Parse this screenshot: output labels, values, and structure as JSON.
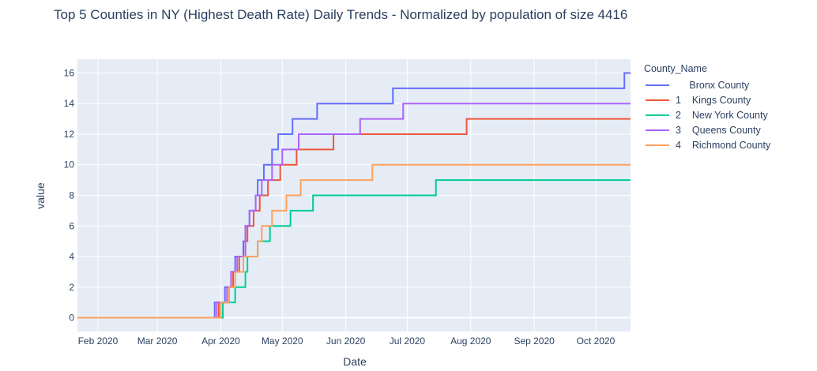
{
  "chart_data": {
    "type": "line",
    "line_shape": "step",
    "title": "Top 5 Counties in NY (Highest Death Rate) Daily Trends - Normalized by population of size 4416",
    "xlabel": "Date",
    "ylabel": "value",
    "x_tick_labels": [
      "Feb 2020",
      "Mar 2020",
      "Apr 2020",
      "May 2020",
      "Jun 2020",
      "Jul 2020",
      "Aug 2020",
      "Sep 2020",
      "Oct 2020"
    ],
    "x_ticks": [
      "2020-02-01",
      "2020-03-01",
      "2020-04-01",
      "2020-05-01",
      "2020-06-01",
      "2020-07-01",
      "2020-08-01",
      "2020-09-01",
      "2020-10-01"
    ],
    "xlim": [
      "2020-01-22",
      "2020-10-18"
    ],
    "ylim": [
      -0.9,
      16.9
    ],
    "y_ticks": [
      0,
      2,
      4,
      6,
      8,
      10,
      12,
      14,
      16
    ],
    "y_tick_labels": [
      "0",
      "2",
      "4",
      "6",
      "8",
      "10",
      "12",
      "14",
      "16"
    ],
    "grid": true,
    "plot_background": "#e5ecf6",
    "legend": {
      "title": "County_Name",
      "placement": "right",
      "entries": [
        "     Bronx County",
        "1    Kings County",
        "2    New York County",
        "3    Queens County",
        "4    Richmond County"
      ]
    },
    "series": [
      {
        "name": "     Bronx County",
        "color": "#636efa",
        "points": [
          [
            "2020-01-22",
            0
          ],
          [
            "2020-03-28",
            0
          ],
          [
            "2020-03-29",
            1
          ],
          [
            "2020-04-03",
            2
          ],
          [
            "2020-04-06",
            3
          ],
          [
            "2020-04-08",
            4
          ],
          [
            "2020-04-12",
            5
          ],
          [
            "2020-04-13",
            6
          ],
          [
            "2020-04-15",
            7
          ],
          [
            "2020-04-18",
            8
          ],
          [
            "2020-04-19",
            9
          ],
          [
            "2020-04-22",
            10
          ],
          [
            "2020-04-26",
            11
          ],
          [
            "2020-04-29",
            12
          ],
          [
            "2020-05-06",
            13
          ],
          [
            "2020-05-18",
            14
          ],
          [
            "2020-06-24",
            15
          ],
          [
            "2020-10-15",
            16
          ],
          [
            "2020-10-18",
            16
          ]
        ]
      },
      {
        "name": "1    Kings County",
        "color": "#ef553b",
        "points": [
          [
            "2020-01-22",
            0
          ],
          [
            "2020-03-30",
            0
          ],
          [
            "2020-03-31",
            1
          ],
          [
            "2020-04-05",
            2
          ],
          [
            "2020-04-07",
            3
          ],
          [
            "2020-04-10",
            4
          ],
          [
            "2020-04-13",
            5
          ],
          [
            "2020-04-14",
            6
          ],
          [
            "2020-04-17",
            7
          ],
          [
            "2020-04-20",
            8
          ],
          [
            "2020-04-24",
            9
          ],
          [
            "2020-04-30",
            10
          ],
          [
            "2020-05-08",
            11
          ],
          [
            "2020-05-26",
            12
          ],
          [
            "2020-07-30",
            13
          ],
          [
            "2020-10-18",
            13
          ]
        ]
      },
      {
        "name": "2    New York County",
        "color": "#00cc96",
        "points": [
          [
            "2020-01-22",
            0
          ],
          [
            "2020-04-01",
            0
          ],
          [
            "2020-04-02",
            1
          ],
          [
            "2020-04-08",
            2
          ],
          [
            "2020-04-13",
            3
          ],
          [
            "2020-04-14",
            4
          ],
          [
            "2020-04-19",
            5
          ],
          [
            "2020-04-25",
            6
          ],
          [
            "2020-05-05",
            7
          ],
          [
            "2020-05-16",
            8
          ],
          [
            "2020-07-15",
            9
          ],
          [
            "2020-10-18",
            9
          ]
        ]
      },
      {
        "name": "3    Queens County",
        "color": "#ab63fa",
        "points": [
          [
            "2020-01-22",
            0
          ],
          [
            "2020-03-29",
            0
          ],
          [
            "2020-03-30",
            1
          ],
          [
            "2020-04-04",
            2
          ],
          [
            "2020-04-06",
            3
          ],
          [
            "2020-04-09",
            4
          ],
          [
            "2020-04-13",
            6
          ],
          [
            "2020-04-15",
            7
          ],
          [
            "2020-04-18",
            8
          ],
          [
            "2020-04-21",
            9
          ],
          [
            "2020-04-26",
            10
          ],
          [
            "2020-05-01",
            11
          ],
          [
            "2020-05-09",
            12
          ],
          [
            "2020-06-08",
            13
          ],
          [
            "2020-06-29",
            14
          ],
          [
            "2020-10-18",
            14
          ]
        ]
      },
      {
        "name": "4    Richmond County",
        "color": "#ffa15a",
        "points": [
          [
            "2020-01-22",
            0
          ],
          [
            "2020-03-31",
            0
          ],
          [
            "2020-04-01",
            1
          ],
          [
            "2020-04-05",
            2
          ],
          [
            "2020-04-08",
            3
          ],
          [
            "2020-04-12",
            4
          ],
          [
            "2020-04-19",
            5
          ],
          [
            "2020-04-21",
            6
          ],
          [
            "2020-04-26",
            7
          ],
          [
            "2020-05-03",
            8
          ],
          [
            "2020-05-10",
            9
          ],
          [
            "2020-06-14",
            10
          ],
          [
            "2020-10-18",
            10
          ]
        ]
      }
    ]
  }
}
